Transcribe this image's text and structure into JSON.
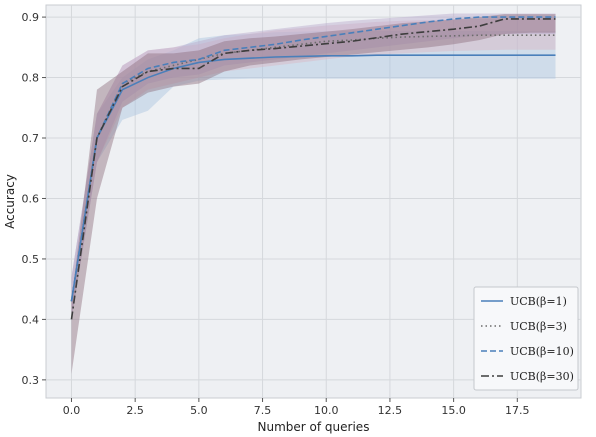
{
  "chart_data": {
    "type": "line",
    "xlabel": "Number of queries",
    "ylabel": "Accuracy",
    "xlim": [
      -1,
      20
    ],
    "ylim": [
      0.27,
      0.92
    ],
    "x_ticks": [
      0.0,
      2.5,
      5.0,
      7.5,
      10.0,
      12.5,
      15.0,
      17.5
    ],
    "x_tick_labels": [
      "0.0",
      "2.5",
      "5.0",
      "7.5",
      "10.0",
      "12.5",
      "15.0",
      "17.5"
    ],
    "y_ticks": [
      0.3,
      0.4,
      0.5,
      0.6,
      0.7,
      0.8,
      0.9
    ],
    "y_tick_labels": [
      "0.3",
      "0.4",
      "0.5",
      "0.6",
      "0.7",
      "0.8",
      "0.9"
    ],
    "grid": true,
    "legend_position": "bottom-right",
    "x": [
      0,
      1,
      2,
      3,
      4,
      5,
      6,
      7,
      8,
      9,
      10,
      11,
      12,
      13,
      14,
      15,
      16,
      17,
      18,
      19
    ],
    "series": [
      {
        "name": "UCB(β=1)",
        "linestyle": "solid",
        "color": "#4a7fba",
        "band_color": "#a9c4df",
        "values": [
          0.43,
          0.7,
          0.78,
          0.8,
          0.815,
          0.825,
          0.83,
          0.832,
          0.834,
          0.835,
          0.836,
          0.836,
          0.837,
          0.837,
          0.837,
          0.837,
          0.837,
          0.837,
          0.837,
          0.837
        ],
        "lower": [
          0.4,
          0.66,
          0.73,
          0.745,
          0.785,
          0.795,
          0.797,
          0.798,
          0.798,
          0.798,
          0.798,
          0.798,
          0.798,
          0.798,
          0.798,
          0.798,
          0.798,
          0.798,
          0.798,
          0.798
        ],
        "upper": [
          0.47,
          0.74,
          0.8,
          0.83,
          0.845,
          0.865,
          0.87,
          0.872,
          0.875,
          0.876,
          0.877,
          0.877,
          0.877,
          0.877,
          0.877,
          0.877,
          0.877,
          0.877,
          0.877,
          0.877
        ]
      },
      {
        "name": "UCB(β=3)",
        "linestyle": "dotted",
        "color": "#6b6b6b",
        "band_color": "#d9b6c4",
        "values": [
          0.43,
          0.7,
          0.79,
          0.81,
          0.82,
          0.83,
          0.84,
          0.845,
          0.85,
          0.855,
          0.86,
          0.862,
          0.865,
          0.867,
          0.868,
          0.869,
          0.87,
          0.87,
          0.87,
          0.87
        ],
        "lower": [
          0.4,
          0.66,
          0.75,
          0.78,
          0.79,
          0.8,
          0.81,
          0.815,
          0.82,
          0.825,
          0.83,
          0.835,
          0.838,
          0.84,
          0.842,
          0.844,
          0.845,
          0.846,
          0.846,
          0.846
        ],
        "upper": [
          0.47,
          0.74,
          0.82,
          0.845,
          0.85,
          0.855,
          0.865,
          0.872,
          0.878,
          0.882,
          0.886,
          0.889,
          0.892,
          0.894,
          0.895,
          0.896,
          0.897,
          0.897,
          0.897,
          0.897
        ]
      },
      {
        "name": "UCB(β=10)",
        "linestyle": "dashed",
        "color": "#4a7fba",
        "band_color": "#b7a8cc",
        "values": [
          0.43,
          0.7,
          0.79,
          0.815,
          0.825,
          0.83,
          0.845,
          0.85,
          0.855,
          0.862,
          0.868,
          0.874,
          0.88,
          0.886,
          0.892,
          0.897,
          0.9,
          0.9,
          0.9,
          0.9
        ],
        "lower": [
          0.4,
          0.66,
          0.76,
          0.79,
          0.8,
          0.805,
          0.82,
          0.825,
          0.83,
          0.835,
          0.84,
          0.845,
          0.85,
          0.855,
          0.86,
          0.865,
          0.87,
          0.872,
          0.872,
          0.872
        ],
        "upper": [
          0.47,
          0.74,
          0.82,
          0.845,
          0.85,
          0.86,
          0.87,
          0.875,
          0.88,
          0.885,
          0.89,
          0.894,
          0.897,
          0.9,
          0.903,
          0.906,
          0.906,
          0.906,
          0.906,
          0.906
        ]
      },
      {
        "name": "UCB(β=30)",
        "linestyle": "dashdot",
        "color": "#3d3d3d",
        "band_color": "#8f6f7f",
        "values": [
          0.4,
          0.7,
          0.785,
          0.81,
          0.815,
          0.815,
          0.84,
          0.845,
          0.848,
          0.852,
          0.856,
          0.86,
          0.866,
          0.872,
          0.876,
          0.88,
          0.885,
          0.897,
          0.897,
          0.897
        ],
        "lower": [
          0.31,
          0.6,
          0.75,
          0.775,
          0.785,
          0.79,
          0.81,
          0.82,
          0.825,
          0.83,
          0.834,
          0.838,
          0.842,
          0.846,
          0.85,
          0.855,
          0.862,
          0.872,
          0.874,
          0.874
        ],
        "upper": [
          0.43,
          0.78,
          0.81,
          0.84,
          0.84,
          0.845,
          0.86,
          0.865,
          0.868,
          0.872,
          0.876,
          0.88,
          0.885,
          0.89,
          0.893,
          0.896,
          0.9,
          0.905,
          0.905,
          0.905
        ]
      }
    ]
  }
}
